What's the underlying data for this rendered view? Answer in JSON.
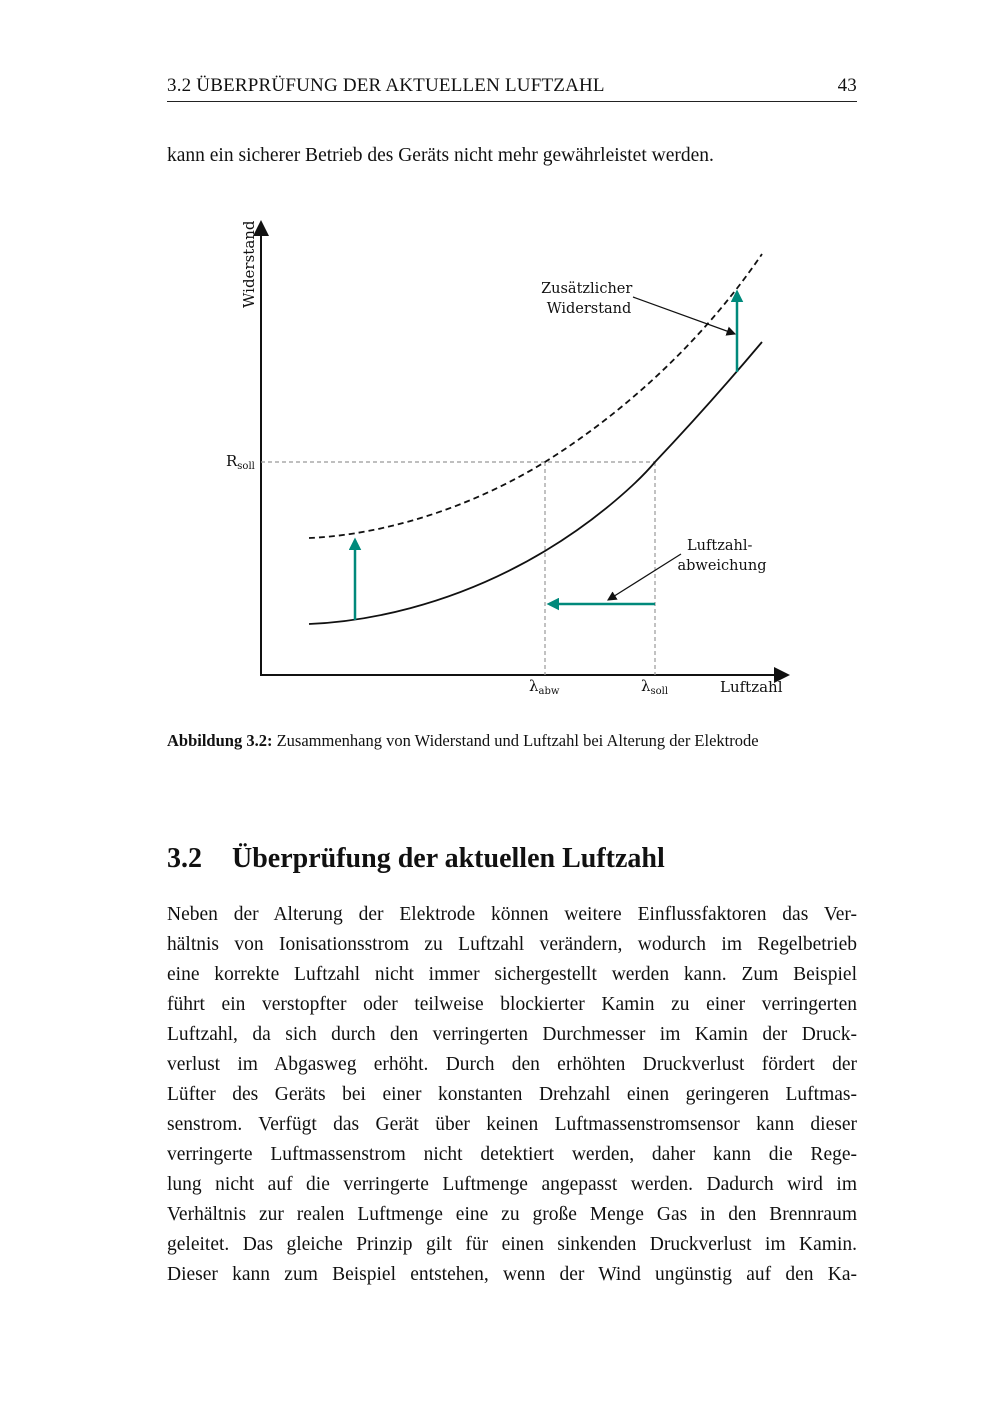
{
  "header": {
    "title": "3.2 ÜBERPRÜFUNG DER AKTUELLEN LUFTZAHL",
    "page_number": "43"
  },
  "intro_line": "kann ein sicherer Betrieb des Geräts nicht mehr gewährleistet werden.",
  "figure": {
    "y_axis_label": "Widerstand",
    "x_axis_label": "Luftzahl",
    "r_soll": "R",
    "r_soll_sub": "soll",
    "lambda_abw": "λ",
    "lambda_abw_sub": "abw",
    "lambda_soll": "λ",
    "lambda_soll_sub": "soll",
    "annotation_1": [
      "Zusätzlicher",
      "Widerstand"
    ],
    "annotation_2": [
      "Luftzahl-",
      "abweichung"
    ],
    "accent_color": "#00897B",
    "caption_label": "Abbildung 3.2:",
    "caption_text": " Zusammenhang von Widerstand und Luftzahl bei Alterung der Elektrode"
  },
  "section": {
    "number": "3.2",
    "title": "Überprüfung der aktuellen Luftzahl"
  },
  "paragraph": [
    "Neben der Alterung der Elektrode können weitere Einflussfaktoren das Ver-",
    "hältnis von Ionisationsstrom zu Luftzahl verändern, wodurch im Regelbetrieb",
    "eine korrekte Luftzahl nicht immer sichergestellt werden kann. Zum Beispiel",
    "führt ein verstopfter oder teilweise blockierter Kamin zu einer verringerten",
    "Luftzahl, da sich durch den verringerten Durchmesser im Kamin der Druck-",
    "verlust im Abgasweg erhöht. Durch den erhöhten Druckverlust fördert der",
    "Lüfter des Geräts bei einer konstanten Drehzahl einen geringeren Luftmas-",
    "senstrom. Verfügt das Gerät über keinen Luftmassenstromsensor kann dieser",
    "verringerte Luftmassenstrom nicht detektiert werden, daher kann die Rege-",
    "lung nicht auf die verringerte Luftmenge angepasst werden. Dadurch wird im",
    "Verhältnis zur realen Luftmenge eine zu große Menge Gas in den Brennraum",
    "geleitet. Das gleiche Prinzip gilt für einen sinkenden Druckverlust im Kamin.",
    "Dieser kann zum Beispiel entstehen, wenn der Wind ungünstig auf den Ka-"
  ]
}
